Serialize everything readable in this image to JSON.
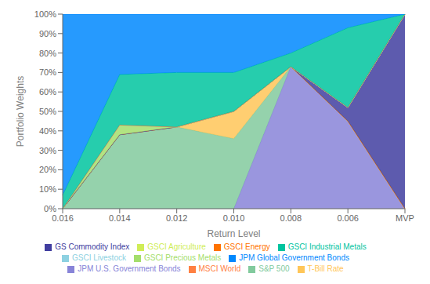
{
  "chart_data": {
    "type": "area",
    "stacked": true,
    "xlabel": "Return Level",
    "ylabel": "Portfolio Weights",
    "categories": [
      "0.016",
      "0.014",
      "0.012",
      "0.010",
      "0.008",
      "0.006",
      "MVP"
    ],
    "ylim": [
      0,
      100
    ],
    "yticks": [
      {
        "value": 0,
        "label": "0%"
      },
      {
        "value": 10,
        "label": "10%"
      },
      {
        "value": 20,
        "label": "20%"
      },
      {
        "value": 30,
        "label": "30%"
      },
      {
        "value": 40,
        "label": "40%"
      },
      {
        "value": 50,
        "label": "50%"
      },
      {
        "value": 60,
        "label": "60%"
      },
      {
        "value": 70,
        "label": "70%"
      },
      {
        "value": 80,
        "label": "80%"
      },
      {
        "value": 90,
        "label": "90%"
      },
      {
        "value": 100,
        "label": "100%"
      }
    ],
    "grid": false,
    "legend": "bottom",
    "series": [
      {
        "name": "JPM U.S. Government Bonds",
        "color": "#8884d8",
        "values": [
          0,
          0,
          0,
          0,
          73,
          45,
          0
        ]
      },
      {
        "name": "S&P 500",
        "color": "#82ca9d",
        "values": [
          0,
          38,
          42,
          36,
          0,
          0,
          0
        ]
      },
      {
        "name": "T-Bill Rate",
        "color": "#ffc658",
        "values": [
          0,
          0,
          0,
          14,
          0,
          0,
          0
        ]
      },
      {
        "name": "GSCI Energy",
        "color": "#ff7300",
        "values": [
          0,
          0,
          0,
          0,
          0,
          0,
          0
        ]
      },
      {
        "name": "GS Commodity Index",
        "color": "#413ea0",
        "values": [
          0,
          0,
          0,
          0,
          0,
          7,
          100
        ]
      },
      {
        "name": "GSCI Precious Metals",
        "color": "#a4de6c",
        "values": [
          0,
          5,
          0,
          0,
          0,
          0,
          0
        ]
      },
      {
        "name": "GSCI Agriculture",
        "color": "#d0ed57",
        "values": [
          0,
          0,
          0,
          0,
          0,
          0,
          0
        ]
      },
      {
        "name": "GSCI Livestock",
        "color": "#8dd1e1",
        "values": [
          0,
          0,
          0,
          0,
          0,
          0,
          0
        ]
      },
      {
        "name": "MSCI World",
        "color": "#ff8042",
        "values": [
          0,
          0,
          0,
          0,
          0,
          0,
          0
        ]
      },
      {
        "name": "GSCI Industrial Metals",
        "color": "#00c49f",
        "values": [
          7,
          26,
          28,
          20,
          7,
          41,
          0
        ]
      },
      {
        "name": "JPM Global Government Bonds",
        "color": "#0088fe",
        "values": [
          93,
          31,
          30,
          30,
          20,
          7,
          0
        ]
      }
    ]
  }
}
